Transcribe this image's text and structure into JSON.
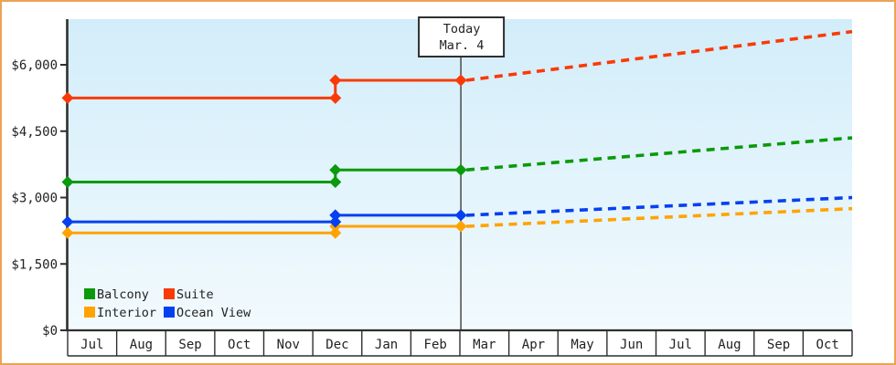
{
  "window": {
    "border_color": "#eaa455",
    "background_color": "#ffffff"
  },
  "chart_data": {
    "type": "line",
    "title": "",
    "description": "Cabin price history by category (step lines) with dashed price projection after today",
    "grid": false,
    "legend_position": "bottom-left-inside",
    "plot_background": {
      "top_color": "#d2edfa",
      "bottom_color": "#f2fafd"
    },
    "axis_color": "#2f2f2f",
    "today_line_color": "#4a4a4a",
    "x_axis": {
      "months": [
        "Jul",
        "Aug",
        "Sep",
        "Oct",
        "Nov",
        "Dec",
        "Jan",
        "Feb",
        "Mar",
        "Apr",
        "May",
        "Jun",
        "Jul",
        "Aug",
        "Sep",
        "Oct"
      ]
    },
    "y_axis": {
      "range": [
        0,
        7000
      ],
      "ticks": [
        {
          "label": "$6,000",
          "value": 6000
        },
        {
          "label": "$4,500",
          "value": 4500
        },
        {
          "label": "$3,000",
          "value": 3000
        },
        {
          "label": "$1,500",
          "value": 1500
        },
        {
          "label": "$0",
          "value": 0
        }
      ]
    },
    "today_marker": {
      "line1": "Today",
      "line2": "Mar. 4",
      "month_position": 8.02
    },
    "step_month_position": 5.46,
    "projection_end_month": 16,
    "series": [
      {
        "name": "Balcony",
        "color": "#0a9a0a",
        "price_initial": 3350,
        "price_after_step": 3625,
        "price_projected_end": 4350
      },
      {
        "name": "Suite",
        "color": "#f93a06",
        "price_initial": 5250,
        "price_after_step": 5650,
        "price_projected_end": 6750
      },
      {
        "name": "Interior",
        "color": "#ffa303",
        "price_initial": 2200,
        "price_after_step": 2350,
        "price_projected_end": 2750
      },
      {
        "name": "Ocean View",
        "color": "#0540f0",
        "price_initial": 2450,
        "price_after_step": 2600,
        "price_projected_end": 3000
      }
    ]
  }
}
